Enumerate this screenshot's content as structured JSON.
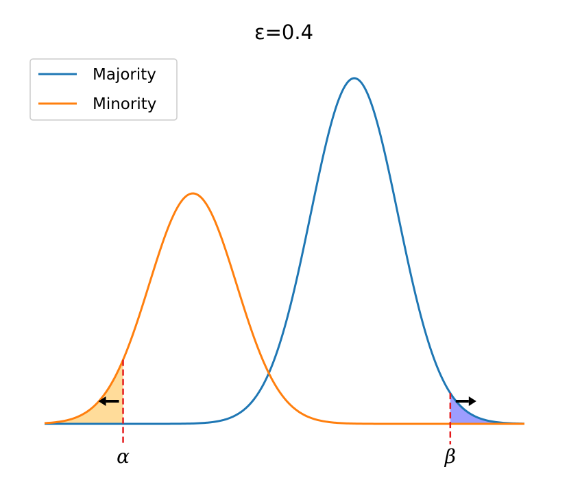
{
  "chart_data": {
    "type": "line",
    "title": "ε=0.4",
    "xlabel": "",
    "ylabel": "",
    "xlim": [
      -4.5,
      6.5
    ],
    "ylim": [
      0,
      0.45
    ],
    "axes_visible": false,
    "grid": false,
    "legend": {
      "placement": "top-left"
    },
    "series": [
      {
        "name": "Majority",
        "color": "#1f77b4",
        "distribution": "normal",
        "mean": 2.6,
        "sd": 1.0,
        "peak": 0.42
      },
      {
        "name": "Minority",
        "color": "#ff7f0e",
        "distribution": "normal",
        "mean": -1.1,
        "sd": 1.0,
        "peak": 0.28
      }
    ],
    "thresholds": [
      {
        "label": "α",
        "x": -2.7,
        "shade": "left",
        "shade_series": "Minority",
        "shade_color": "#ffdc9a",
        "arrow": "left",
        "line_color": "#e41a1c"
      },
      {
        "label": "β",
        "x": 4.8,
        "shade": "right",
        "shade_series": "Majority",
        "shade_color": "#9d9dff",
        "arrow": "right",
        "line_color": "#e41a1c"
      }
    ]
  }
}
